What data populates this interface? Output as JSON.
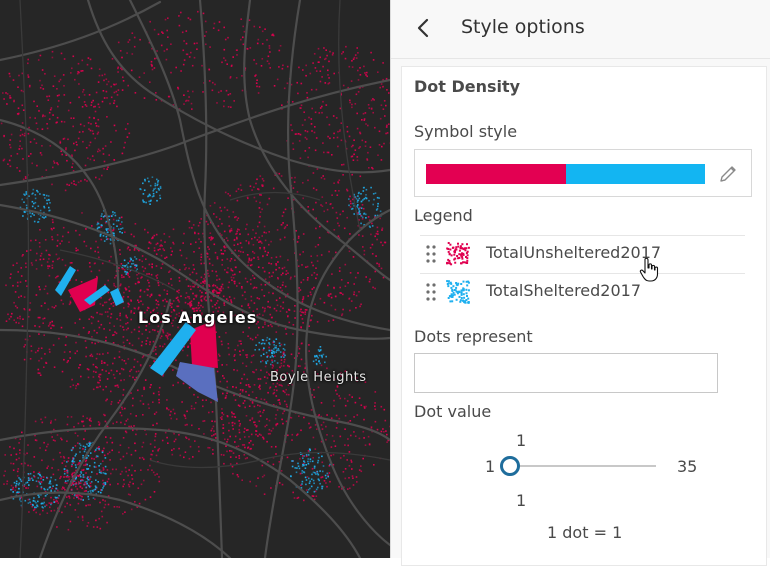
{
  "map": {
    "labels": {
      "city": "Los Angeles",
      "neighborhood": "Boyle Heights"
    },
    "colors": {
      "background": "#262626",
      "roads": "#4a4a4a",
      "unsheltered": "#e0004f",
      "sheltered": "#1fb0ef"
    }
  },
  "panel": {
    "title": "Style options",
    "back_icon": "chevron-left-icon",
    "section_title": "Dot Density",
    "symbol_style": {
      "label": "Symbol style",
      "colors": [
        "#e30052",
        "#13b5f2"
      ],
      "edit_icon": "pencil-icon"
    },
    "legend": {
      "label": "Legend",
      "items": [
        {
          "label": "TotalUnsheltered2017",
          "color": "#e0004f",
          "icon": "drag-handle-icon"
        },
        {
          "label": "TotalSheltered2017",
          "color": "#1fb0ef",
          "icon": "drag-handle-icon"
        }
      ]
    },
    "dots_represent": {
      "label": "Dots represent",
      "value": ""
    },
    "dot_value": {
      "label": "Dot value",
      "current_top": "1",
      "current_bottom": "1",
      "min": "1",
      "max": "35",
      "value": 1,
      "summary": "1 dot = 1"
    }
  }
}
